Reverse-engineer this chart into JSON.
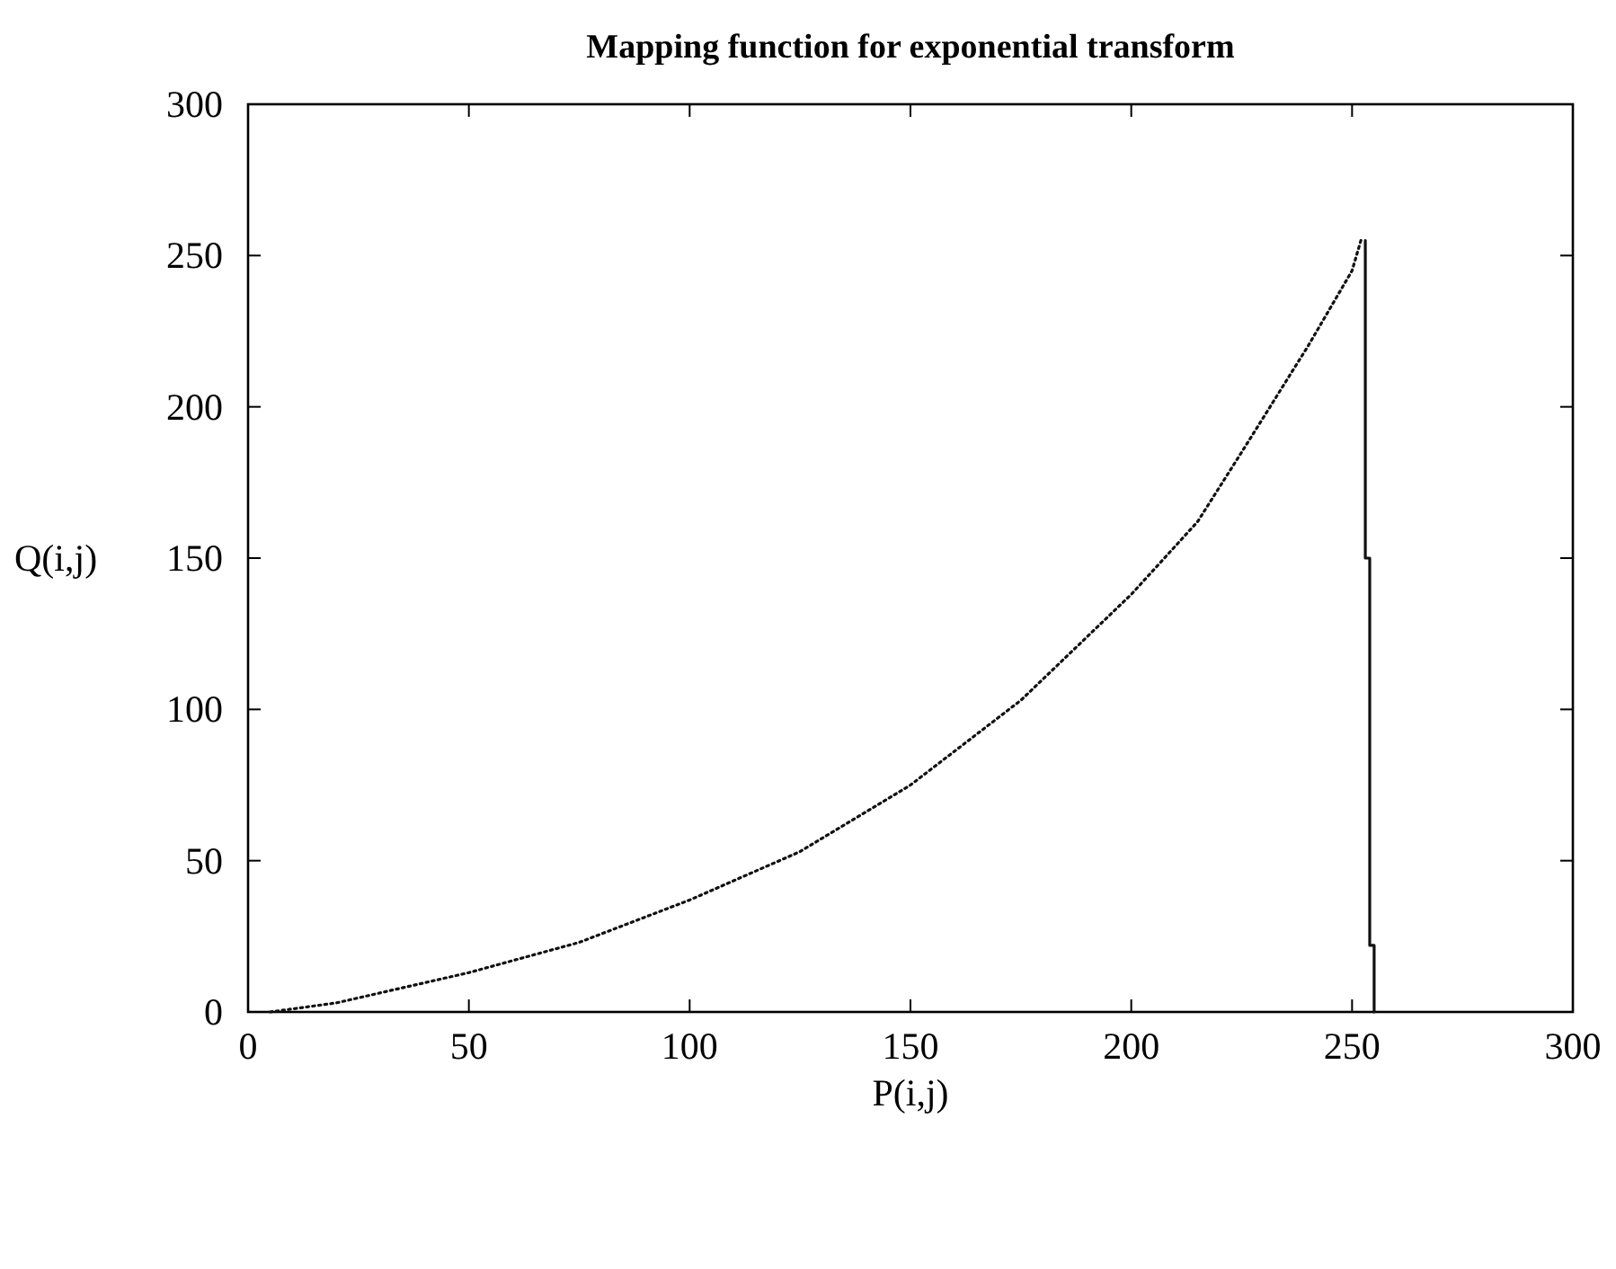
{
  "chart_data": {
    "type": "line",
    "title": "Mapping function for exponential transform",
    "xlabel": "P(i,j)",
    "ylabel": "Q(i,j)",
    "xlim": [
      0,
      300
    ],
    "ylim": [
      0,
      300
    ],
    "xticks": [
      0,
      50,
      100,
      150,
      200,
      250,
      300
    ],
    "yticks": [
      0,
      50,
      100,
      150,
      200,
      250,
      300
    ],
    "grid": false,
    "marker": "none",
    "series": [
      {
        "color": "#111111",
        "line_style": "dotted",
        "x": [
          5,
          20,
          35,
          50,
          75,
          100,
          125,
          150,
          175,
          200,
          215,
          225,
          240,
          250,
          252
        ],
        "values": [
          0,
          3,
          8,
          13,
          23,
          37,
          53,
          75,
          103,
          138,
          162,
          185,
          220,
          245,
          255
        ]
      },
      {
        "color": "#111111",
        "line_style": "solid",
        "x": [
          253,
          253,
          254,
          254,
          255,
          255
        ],
        "values": [
          255,
          150,
          150,
          22,
          22,
          0
        ]
      }
    ]
  }
}
